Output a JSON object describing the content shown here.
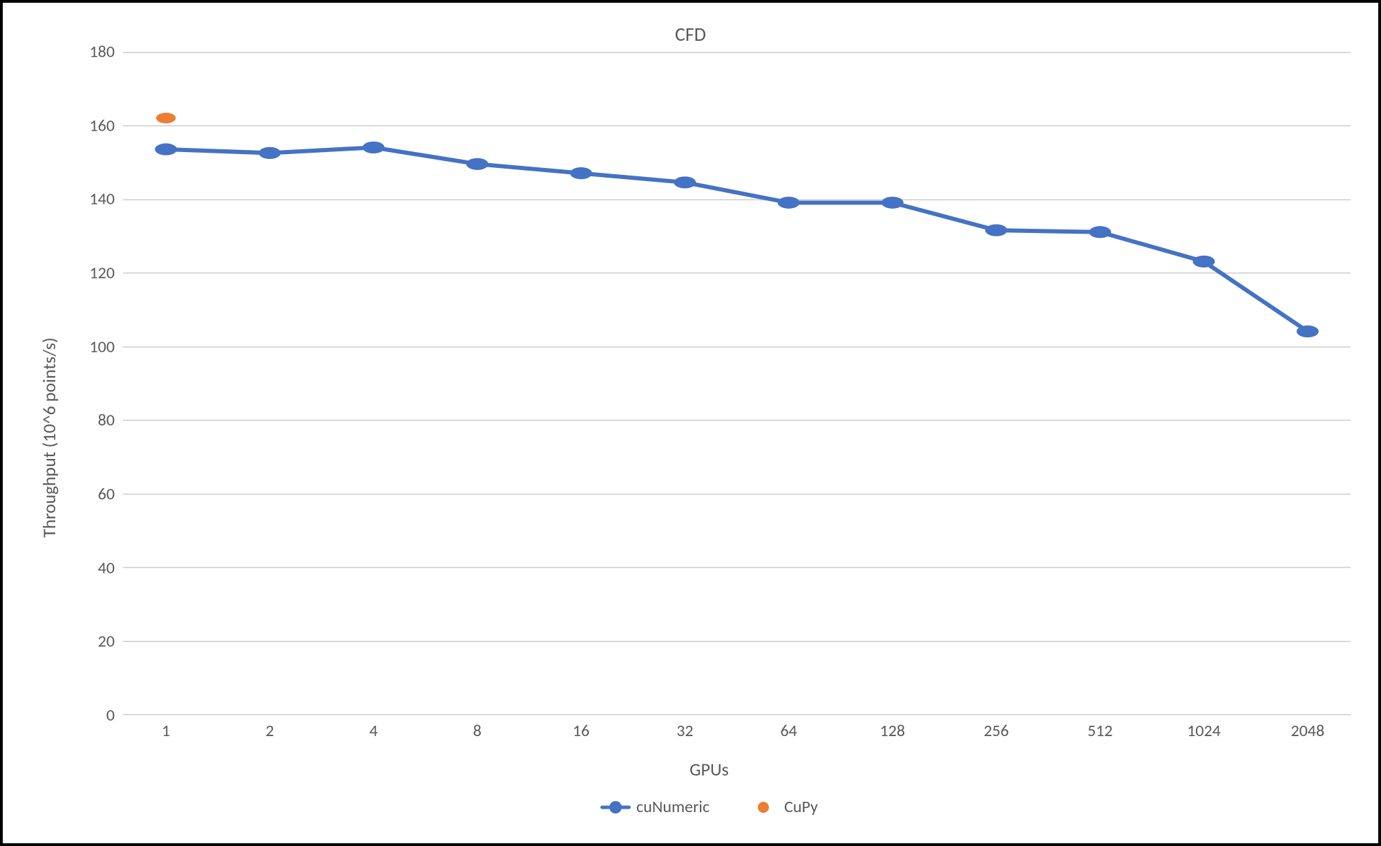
{
  "chart": {
    "type": "line",
    "title": "CFD",
    "title_fontsize": 28,
    "title_color": "#595959",
    "background_color": "#ffffff",
    "border_color": "#000000",
    "x_axis": {
      "title": "GPUs",
      "title_fontsize": 26,
      "categories": [
        "1",
        "2",
        "4",
        "8",
        "16",
        "32",
        "64",
        "128",
        "256",
        "512",
        "1024",
        "2048"
      ],
      "tick_fontsize": 24,
      "tick_color": "#595959",
      "left_pad_frac": 0.035,
      "right_pad_frac": 0.035
    },
    "y_axis": {
      "title": "Throughput (10^6 points/s)",
      "title_fontsize": 26,
      "min": 0,
      "max": 180,
      "tick_step": 20,
      "tick_fontsize": 24,
      "tick_color": "#595959"
    },
    "grid": {
      "color": "#d9d9d9",
      "width": 2
    },
    "series": [
      {
        "name": "cuNumeric",
        "type": "line_marker",
        "color": "#4472c4",
        "line_width": 6,
        "marker_radius": 9,
        "values": [
          153.5,
          152.5,
          154,
          149.5,
          147,
          144.5,
          139,
          139,
          131.5,
          131,
          123,
          104
        ]
      },
      {
        "name": "CuPy",
        "type": "marker",
        "color": "#ed7d31",
        "line_width": 6,
        "marker_radius": 8,
        "values": [
          162,
          null,
          null,
          null,
          null,
          null,
          null,
          null,
          null,
          null,
          null,
          null
        ]
      }
    ],
    "legend": {
      "fontsize": 24,
      "text_color": "#595959",
      "items": [
        {
          "label": "cuNumeric",
          "series_index": 0
        },
        {
          "label": "CuPy",
          "series_index": 1
        }
      ]
    }
  }
}
